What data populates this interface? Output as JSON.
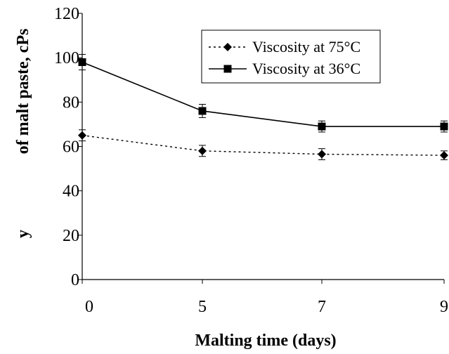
{
  "chart_data": {
    "type": "line",
    "title": "",
    "xlabel": "Malting time (days)",
    "ylabel": "y          of malt paste,  cPs",
    "ylabel_parts": [
      "y",
      "of malt paste,  cPs"
    ],
    "categories": [
      "0",
      "5",
      "7",
      "9"
    ],
    "ylim": [
      0,
      120
    ],
    "yticks": [
      "0",
      "20",
      "40",
      "60",
      "80",
      "100",
      "120"
    ],
    "grid": false,
    "legend_position": "top-right",
    "series": [
      {
        "name": "Viscosity at 75°C",
        "values": [
          65,
          58,
          56.5,
          56
        ],
        "errors": [
          2.5,
          2.5,
          2.5,
          2
        ],
        "line_style": "dotted",
        "marker": "diamond",
        "color": "#000000"
      },
      {
        "name": "Viscosity at 36°C",
        "values": [
          98,
          76,
          69,
          69
        ],
        "errors": [
          3.5,
          3,
          2.5,
          2.5
        ],
        "line_style": "solid",
        "marker": "square",
        "color": "#000000"
      }
    ]
  }
}
